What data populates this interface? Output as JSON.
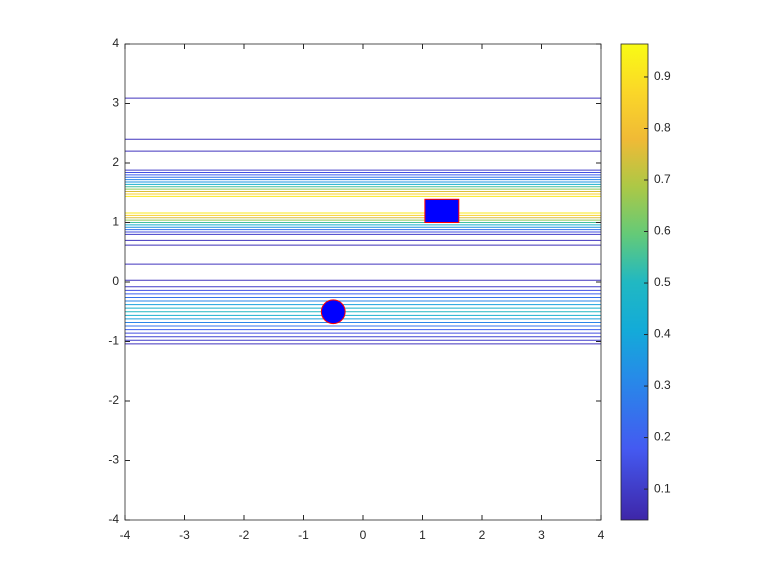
{
  "chart_data": {
    "type": "contour",
    "colormap": "parula",
    "xlim": [
      -4,
      4
    ],
    "ylim": [
      -4,
      4
    ],
    "xticks": [
      -4,
      -3,
      -2,
      -1,
      0,
      1,
      2,
      3,
      4
    ],
    "yticks": [
      -4,
      -3,
      -2,
      -1,
      0,
      1,
      2,
      3,
      4
    ],
    "clim": [
      0.04,
      0.964
    ],
    "cticks": [
      0.1,
      0.2,
      0.3,
      0.4,
      0.5,
      0.6,
      0.7,
      0.8,
      0.9
    ],
    "contours": [
      {
        "y": 3.09,
        "level": 0.08
      },
      {
        "y": 2.4,
        "level": 0.08
      },
      {
        "y": 2.2,
        "level": 0.08
      },
      {
        "y": 1.88,
        "level": 0.1
      },
      {
        "y": 1.84,
        "level": 0.15
      },
      {
        "y": 1.8,
        "level": 0.2
      },
      {
        "y": 1.76,
        "level": 0.25
      },
      {
        "y": 1.72,
        "level": 0.3
      },
      {
        "y": 1.68,
        "level": 0.35
      },
      {
        "y": 1.64,
        "level": 0.45
      },
      {
        "y": 1.6,
        "level": 0.55
      },
      {
        "y": 1.56,
        "level": 0.65
      },
      {
        "y": 1.52,
        "level": 0.75
      },
      {
        "y": 1.48,
        "level": 0.85
      },
      {
        "y": 1.44,
        "level": 0.92
      },
      {
        "y": 1.16,
        "level": 0.92
      },
      {
        "y": 1.12,
        "level": 0.85
      },
      {
        "y": 1.08,
        "level": 0.75
      },
      {
        "y": 1.04,
        "level": 0.65
      },
      {
        "y": 1.0,
        "level": 0.55
      },
      {
        "y": 0.96,
        "level": 0.45
      },
      {
        "y": 0.92,
        "level": 0.35
      },
      {
        "y": 0.88,
        "level": 0.25
      },
      {
        "y": 0.84,
        "level": 0.15
      },
      {
        "y": 0.8,
        "level": 0.1
      },
      {
        "y": 0.7,
        "level": 0.08
      },
      {
        "y": 0.62,
        "level": 0.07
      },
      {
        "y": 0.3,
        "level": 0.08
      },
      {
        "y": 0.03,
        "level": 0.08
      },
      {
        "y": -0.08,
        "level": 0.1
      },
      {
        "y": -0.14,
        "level": 0.15
      },
      {
        "y": -0.2,
        "level": 0.2
      },
      {
        "y": -0.26,
        "level": 0.25
      },
      {
        "y": -0.32,
        "level": 0.3
      },
      {
        "y": -0.38,
        "level": 0.38
      },
      {
        "y": -0.44,
        "level": 0.45
      },
      {
        "y": -0.5,
        "level": 0.5
      },
      {
        "y": -0.56,
        "level": 0.45
      },
      {
        "y": -0.62,
        "level": 0.38
      },
      {
        "y": -0.68,
        "level": 0.3
      },
      {
        "y": -0.74,
        "level": 0.25
      },
      {
        "y": -0.8,
        "level": 0.2
      },
      {
        "y": -0.86,
        "level": 0.15
      },
      {
        "y": -0.92,
        "level": 0.12
      },
      {
        "y": -0.98,
        "level": 0.1
      },
      {
        "y": -1.04,
        "level": 0.08
      }
    ],
    "rectangle": {
      "x": [
        1.04,
        1.61
      ],
      "y": [
        1.0,
        1.39
      ],
      "color": "#0000ff",
      "edge": "#ff0000"
    },
    "circle": {
      "x": -0.5,
      "y": -0.5,
      "r": 0.2,
      "color": "#0000ff",
      "edge": "#ff0000"
    }
  }
}
